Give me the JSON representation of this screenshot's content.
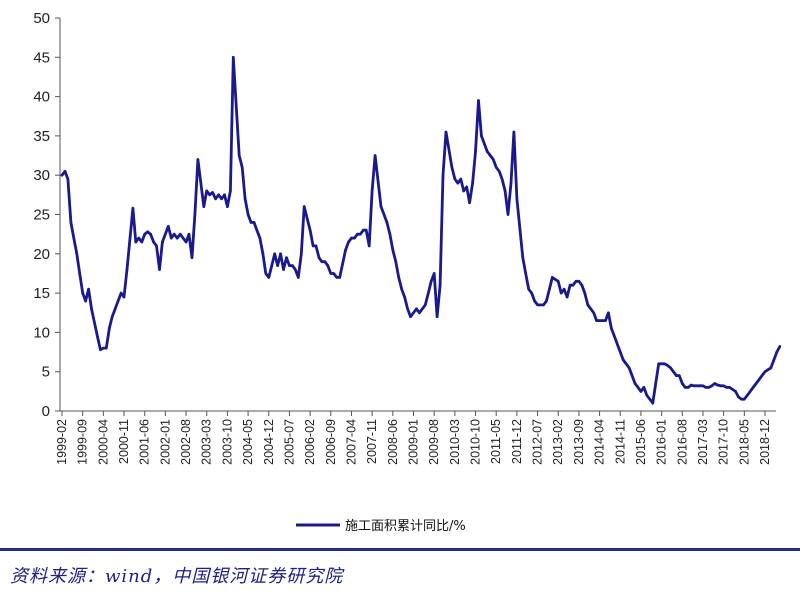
{
  "chart_data": {
    "type": "line",
    "title": "",
    "xlabel": "",
    "ylabel": "",
    "ylim": [
      0,
      50
    ],
    "y_ticks": [
      0,
      5,
      10,
      15,
      20,
      25,
      30,
      35,
      40,
      45,
      50
    ],
    "grid": false,
    "legend_position": "bottom",
    "x_tick_labels": [
      "1999-02",
      "1999-09",
      "2000-04",
      "2000-11",
      "2001-06",
      "2002-01",
      "2002-08",
      "2003-03",
      "2003-10",
      "2004-05",
      "2004-12",
      "2005-07",
      "2006-02",
      "2006-09",
      "2007-04",
      "2007-11",
      "2008-06",
      "2009-01",
      "2009-08",
      "2010-03",
      "2010-10",
      "2011-05",
      "2011-12",
      "2012-07",
      "2013-02",
      "2013-09",
      "2014-04",
      "2014-11",
      "2015-06",
      "2016-01",
      "2016-08",
      "2017-03",
      "2017-10",
      "2018-05",
      "2018-12"
    ],
    "series": [
      {
        "name": "施工面积累计同比/%",
        "color": "#1a1a8c",
        "points": [
          [
            "1999-02",
            30.0
          ],
          [
            "1999-03",
            30.5
          ],
          [
            "1999-04",
            29.5
          ],
          [
            "1999-05",
            24.0
          ],
          [
            "1999-06",
            22.0
          ],
          [
            "1999-07",
            20.0
          ],
          [
            "1999-08",
            17.5
          ],
          [
            "1999-09",
            15.0
          ],
          [
            "1999-10",
            14.0
          ],
          [
            "1999-11",
            15.5
          ],
          [
            "1999-12",
            13.0
          ],
          [
            "2000-02",
            9.5
          ],
          [
            "2000-03",
            7.8
          ],
          [
            "2000-04",
            8.0
          ],
          [
            "2000-05",
            8.0
          ],
          [
            "2000-06",
            10.5
          ],
          [
            "2000-07",
            12.0
          ],
          [
            "2000-08",
            13.0
          ],
          [
            "2000-09",
            14.0
          ],
          [
            "2000-10",
            15.0
          ],
          [
            "2000-11",
            14.5
          ],
          [
            "2000-12",
            18.0
          ],
          [
            "2001-02",
            25.8
          ],
          [
            "2001-03",
            21.5
          ],
          [
            "2001-04",
            22.0
          ],
          [
            "2001-05",
            21.5
          ],
          [
            "2001-06",
            22.5
          ],
          [
            "2001-07",
            22.8
          ],
          [
            "2001-08",
            22.5
          ],
          [
            "2001-09",
            21.5
          ],
          [
            "2001-10",
            21.0
          ],
          [
            "2001-11",
            18.0
          ],
          [
            "2001-12",
            21.5
          ],
          [
            "2002-02",
            23.5
          ],
          [
            "2002-03",
            22.0
          ],
          [
            "2002-04",
            22.5
          ],
          [
            "2002-05",
            22.0
          ],
          [
            "2002-06",
            22.5
          ],
          [
            "2002-07",
            22.0
          ],
          [
            "2002-08",
            21.5
          ],
          [
            "2002-09",
            22.5
          ],
          [
            "2002-10",
            19.5
          ],
          [
            "2002-11",
            25.0
          ],
          [
            "2002-12",
            32.0
          ],
          [
            "2003-02",
            26.0
          ],
          [
            "2003-03",
            28.0
          ],
          [
            "2003-04",
            27.5
          ],
          [
            "2003-05",
            27.8
          ],
          [
            "2003-06",
            27.0
          ],
          [
            "2003-07",
            27.5
          ],
          [
            "2003-08",
            27.0
          ],
          [
            "2003-09",
            27.5
          ],
          [
            "2003-10",
            26.0
          ],
          [
            "2003-11",
            28.0
          ],
          [
            "2003-12",
            45.0
          ],
          [
            "2004-02",
            32.5
          ],
          [
            "2004-03",
            31.0
          ],
          [
            "2004-04",
            27.0
          ],
          [
            "2004-05",
            25.0
          ],
          [
            "2004-06",
            24.0
          ],
          [
            "2004-07",
            24.0
          ],
          [
            "2004-08",
            23.0
          ],
          [
            "2004-09",
            22.0
          ],
          [
            "2004-10",
            20.0
          ],
          [
            "2004-11",
            17.5
          ],
          [
            "2004-12",
            17.0
          ],
          [
            "2005-02",
            20.0
          ],
          [
            "2005-03",
            18.5
          ],
          [
            "2005-04",
            20.0
          ],
          [
            "2005-05",
            18.0
          ],
          [
            "2005-06",
            19.5
          ],
          [
            "2005-07",
            18.5
          ],
          [
            "2005-08",
            18.5
          ],
          [
            "2005-09",
            18.0
          ],
          [
            "2005-10",
            17.0
          ],
          [
            "2005-11",
            20.0
          ],
          [
            "2005-12",
            26.0
          ],
          [
            "2006-02",
            23.0
          ],
          [
            "2006-03",
            21.0
          ],
          [
            "2006-04",
            21.0
          ],
          [
            "2006-05",
            19.5
          ],
          [
            "2006-06",
            19.0
          ],
          [
            "2006-07",
            19.0
          ],
          [
            "2006-08",
            18.5
          ],
          [
            "2006-09",
            17.5
          ],
          [
            "2006-10",
            17.5
          ],
          [
            "2006-11",
            17.0
          ],
          [
            "2006-12",
            17.0
          ],
          [
            "2007-02",
            20.5
          ],
          [
            "2007-03",
            21.5
          ],
          [
            "2007-04",
            22.0
          ],
          [
            "2007-05",
            22.0
          ],
          [
            "2007-06",
            22.5
          ],
          [
            "2007-07",
            22.5
          ],
          [
            "2007-08",
            23.0
          ],
          [
            "2007-09",
            23.0
          ],
          [
            "2007-10",
            21.0
          ],
          [
            "2007-11",
            28.0
          ],
          [
            "2007-12",
            32.5
          ],
          [
            "2008-02",
            26.0
          ],
          [
            "2008-03",
            25.0
          ],
          [
            "2008-04",
            24.0
          ],
          [
            "2008-05",
            22.5
          ],
          [
            "2008-06",
            20.5
          ],
          [
            "2008-07",
            19.0
          ],
          [
            "2008-08",
            17.0
          ],
          [
            "2008-09",
            15.5
          ],
          [
            "2008-10",
            14.5
          ],
          [
            "2008-11",
            13.0
          ],
          [
            "2008-12",
            12.0
          ],
          [
            "2009-02",
            13.0
          ],
          [
            "2009-03",
            12.5
          ],
          [
            "2009-04",
            13.0
          ],
          [
            "2009-05",
            13.5
          ],
          [
            "2009-06",
            15.0
          ],
          [
            "2009-07",
            16.5
          ],
          [
            "2009-08",
            17.5
          ],
          [
            "2009-09",
            12.0
          ],
          [
            "2009-10",
            16.0
          ],
          [
            "2009-11",
            30.0
          ],
          [
            "2009-12",
            35.5
          ],
          [
            "2010-02",
            31.0
          ],
          [
            "2010-03",
            29.5
          ],
          [
            "2010-04",
            29.0
          ],
          [
            "2010-05",
            29.5
          ],
          [
            "2010-06",
            28.0
          ],
          [
            "2010-07",
            28.5
          ],
          [
            "2010-08",
            26.5
          ],
          [
            "2010-09",
            29.0
          ],
          [
            "2010-10",
            33.0
          ],
          [
            "2010-11",
            39.5
          ],
          [
            "2010-12",
            35.0
          ],
          [
            "2011-02",
            33.0
          ],
          [
            "2011-03",
            32.5
          ],
          [
            "2011-04",
            32.0
          ],
          [
            "2011-05",
            31.0
          ],
          [
            "2011-06",
            30.5
          ],
          [
            "2011-07",
            29.5
          ],
          [
            "2011-08",
            28.0
          ],
          [
            "2011-09",
            25.0
          ],
          [
            "2011-10",
            29.0
          ],
          [
            "2011-11",
            35.5
          ],
          [
            "2011-12",
            27.0
          ],
          [
            "2012-02",
            19.5
          ],
          [
            "2012-03",
            17.5
          ],
          [
            "2012-04",
            15.5
          ],
          [
            "2012-05",
            15.0
          ],
          [
            "2012-06",
            14.0
          ],
          [
            "2012-07",
            13.5
          ],
          [
            "2012-08",
            13.5
          ],
          [
            "2012-09",
            13.5
          ],
          [
            "2012-10",
            14.0
          ],
          [
            "2012-11",
            15.5
          ],
          [
            "2012-12",
            17.0
          ],
          [
            "2013-02",
            16.5
          ],
          [
            "2013-03",
            15.0
          ],
          [
            "2013-04",
            15.5
          ],
          [
            "2013-05",
            14.5
          ],
          [
            "2013-06",
            16.0
          ],
          [
            "2013-07",
            16.0
          ],
          [
            "2013-08",
            16.5
          ],
          [
            "2013-09",
            16.5
          ],
          [
            "2013-10",
            16.0
          ],
          [
            "2013-11",
            15.0
          ],
          [
            "2013-12",
            13.5
          ],
          [
            "2014-02",
            12.5
          ],
          [
            "2014-03",
            11.5
          ],
          [
            "2014-04",
            11.5
          ],
          [
            "2014-05",
            11.5
          ],
          [
            "2014-06",
            11.5
          ],
          [
            "2014-07",
            12.5
          ],
          [
            "2014-08",
            10.5
          ],
          [
            "2014-09",
            9.5
          ],
          [
            "2014-10",
            8.5
          ],
          [
            "2014-11",
            7.5
          ],
          [
            "2014-12",
            6.5
          ],
          [
            "2015-02",
            5.5
          ],
          [
            "2015-03",
            4.5
          ],
          [
            "2015-04",
            3.5
          ],
          [
            "2015-05",
            3.0
          ],
          [
            "2015-06",
            2.5
          ],
          [
            "2015-07",
            3.0
          ],
          [
            "2015-08",
            2.0
          ],
          [
            "2015-09",
            1.5
          ],
          [
            "2015-10",
            1.0
          ],
          [
            "2015-11",
            3.5
          ],
          [
            "2015-12",
            6.0
          ],
          [
            "2016-02",
            6.0
          ],
          [
            "2016-03",
            5.8
          ],
          [
            "2016-04",
            5.5
          ],
          [
            "2016-05",
            5.0
          ],
          [
            "2016-06",
            4.5
          ],
          [
            "2016-07",
            4.5
          ],
          [
            "2016-08",
            3.5
          ],
          [
            "2016-09",
            3.0
          ],
          [
            "2016-10",
            3.0
          ],
          [
            "2016-11",
            3.3
          ],
          [
            "2016-12",
            3.2
          ],
          [
            "2017-02",
            3.2
          ],
          [
            "2017-03",
            3.2
          ],
          [
            "2017-04",
            3.0
          ],
          [
            "2017-05",
            3.0
          ],
          [
            "2017-06",
            3.2
          ],
          [
            "2017-07",
            3.5
          ],
          [
            "2017-08",
            3.3
          ],
          [
            "2017-09",
            3.2
          ],
          [
            "2017-10",
            3.2
          ],
          [
            "2017-11",
            3.0
          ],
          [
            "2017-12",
            3.0
          ],
          [
            "2018-02",
            2.5
          ],
          [
            "2018-03",
            1.8
          ],
          [
            "2018-04",
            1.5
          ],
          [
            "2018-05",
            1.5
          ],
          [
            "2018-06",
            2.0
          ],
          [
            "2018-07",
            2.5
          ],
          [
            "2018-08",
            3.0
          ],
          [
            "2018-09",
            3.5
          ],
          [
            "2018-10",
            4.0
          ],
          [
            "2018-11",
            4.5
          ],
          [
            "2018-12",
            5.0
          ],
          [
            "2019-02",
            5.5
          ],
          [
            "2019-03",
            6.5
          ],
          [
            "2019-04",
            7.5
          ],
          [
            "2019-05",
            8.2
          ]
        ]
      }
    ]
  },
  "source_note": "资料来源：wind，中国银河证券研究院"
}
